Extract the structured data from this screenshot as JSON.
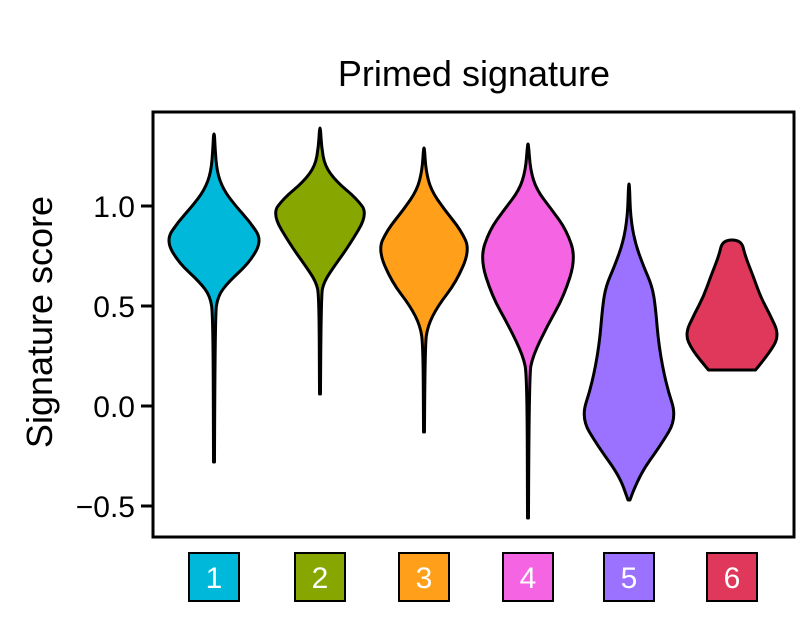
{
  "chart_data": {
    "type": "violin",
    "title": "Primed signature",
    "xlabel": "",
    "ylabel": "Signature score",
    "ylim": [
      -0.6,
      1.45
    ],
    "yticks": [
      "1.0",
      "0.5",
      "0.0",
      "−0.5"
    ],
    "grid": false,
    "legend": "none",
    "categories": [
      "1",
      "2",
      "3",
      "4",
      "5",
      "6"
    ],
    "colors": [
      "#00b8d9",
      "#88a600",
      "#ff9f1a",
      "#f564e3",
      "#9b72ff",
      "#e0385a"
    ],
    "series": [
      {
        "category": "1",
        "min": -0.28,
        "max": 1.36,
        "peak": 0.83,
        "profile": [
          [
            -0.28,
            0.01
          ],
          [
            0.45,
            0.02
          ],
          [
            0.55,
            0.08
          ],
          [
            0.62,
            0.3
          ],
          [
            0.72,
            0.75
          ],
          [
            0.83,
            1.0
          ],
          [
            0.92,
            0.75
          ],
          [
            1.0,
            0.45
          ],
          [
            1.08,
            0.2
          ],
          [
            1.17,
            0.06
          ],
          [
            1.3,
            0.02
          ],
          [
            1.36,
            0.01
          ]
        ]
      },
      {
        "category": "2",
        "min": 0.06,
        "max": 1.39,
        "peak": 0.96,
        "profile": [
          [
            0.06,
            0.01
          ],
          [
            0.55,
            0.02
          ],
          [
            0.62,
            0.08
          ],
          [
            0.7,
            0.3
          ],
          [
            0.8,
            0.6
          ],
          [
            0.96,
            1.0
          ],
          [
            1.04,
            0.75
          ],
          [
            1.12,
            0.35
          ],
          [
            1.2,
            0.1
          ],
          [
            1.3,
            0.03
          ],
          [
            1.39,
            0.01
          ]
        ]
      },
      {
        "category": "3",
        "min": -0.13,
        "max": 1.29,
        "peak": 0.78,
        "profile": [
          [
            -0.13,
            0.01
          ],
          [
            0.3,
            0.02
          ],
          [
            0.4,
            0.08
          ],
          [
            0.5,
            0.3
          ],
          [
            0.62,
            0.7
          ],
          [
            0.78,
            1.0
          ],
          [
            0.88,
            0.8
          ],
          [
            0.98,
            0.45
          ],
          [
            1.08,
            0.15
          ],
          [
            1.18,
            0.04
          ],
          [
            1.29,
            0.01
          ]
        ]
      },
      {
        "category": "4",
        "min": -0.56,
        "max": 1.31,
        "peak": 0.74,
        "profile": [
          [
            -0.56,
            0.01
          ],
          [
            0.15,
            0.02
          ],
          [
            0.25,
            0.1
          ],
          [
            0.4,
            0.4
          ],
          [
            0.55,
            0.75
          ],
          [
            0.74,
            1.0
          ],
          [
            0.88,
            0.8
          ],
          [
            0.98,
            0.5
          ],
          [
            1.08,
            0.18
          ],
          [
            1.18,
            0.05
          ],
          [
            1.31,
            0.01
          ]
        ]
      },
      {
        "category": "5",
        "min": -0.47,
        "max": 1.11,
        "peak": -0.06,
        "profile": [
          [
            -0.47,
            0.02
          ],
          [
            -0.35,
            0.2
          ],
          [
            -0.2,
            0.65
          ],
          [
            -0.06,
            1.0
          ],
          [
            0.1,
            0.78
          ],
          [
            0.3,
            0.62
          ],
          [
            0.5,
            0.55
          ],
          [
            0.6,
            0.48
          ],
          [
            0.7,
            0.3
          ],
          [
            0.82,
            0.12
          ],
          [
            0.95,
            0.03
          ],
          [
            1.11,
            0.01
          ]
        ]
      },
      {
        "category": "6",
        "min": 0.18,
        "max": 0.83,
        "peak": 0.36,
        "profile": [
          [
            0.18,
            0.5
          ],
          [
            0.28,
            0.85
          ],
          [
            0.36,
            1.0
          ],
          [
            0.46,
            0.8
          ],
          [
            0.55,
            0.6
          ],
          [
            0.65,
            0.45
          ],
          [
            0.75,
            0.28
          ],
          [
            0.83,
            0.2
          ]
        ]
      }
    ]
  }
}
